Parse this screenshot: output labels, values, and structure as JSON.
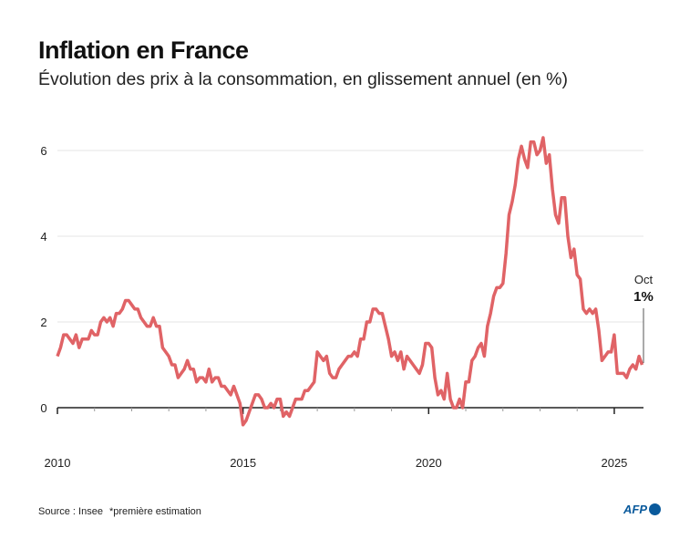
{
  "title": "Inflation en France",
  "subtitle": "Évolution des prix à la consommation, en glissement annuel (en %)",
  "source": "Source : Insee",
  "footnote": "*première estimation",
  "logo": "AFP",
  "chart_data": {
    "type": "line",
    "title": "Inflation en France",
    "subtitle": "Évolution des prix à la consommation, en glissement annuel (en %)",
    "xlabel": "",
    "ylabel": "",
    "x_start": "2010-01",
    "x_end": "2025-10",
    "frequency": "monthly",
    "xticks": [
      "2010",
      "2015",
      "2020",
      "2025"
    ],
    "yticks": [
      "0",
      "2",
      "4",
      "6"
    ],
    "ylim": [
      -0.5,
      6.6
    ],
    "grid": true,
    "color": "#e06366",
    "annotation": {
      "month": "Oct",
      "value": "1%"
    },
    "values": [
      1.2,
      1.4,
      1.7,
      1.7,
      1.6,
      1.5,
      1.7,
      1.4,
      1.6,
      1.6,
      1.6,
      1.8,
      1.7,
      1.7,
      2.0,
      2.1,
      2.0,
      2.1,
      1.9,
      2.2,
      2.2,
      2.3,
      2.5,
      2.5,
      2.4,
      2.3,
      2.3,
      2.1,
      2.0,
      1.9,
      1.9,
      2.1,
      1.9,
      1.9,
      1.4,
      1.3,
      1.2,
      1.0,
      1.0,
      0.7,
      0.8,
      0.9,
      1.1,
      0.9,
      0.9,
      0.6,
      0.7,
      0.7,
      0.6,
      0.9,
      0.6,
      0.7,
      0.7,
      0.5,
      0.5,
      0.4,
      0.3,
      0.5,
      0.3,
      0.1,
      -0.4,
      -0.3,
      -0.1,
      0.1,
      0.3,
      0.3,
      0.2,
      0.0,
      0.0,
      0.1,
      0.0,
      0.2,
      0.2,
      -0.2,
      -0.1,
      -0.2,
      0.0,
      0.2,
      0.2,
      0.2,
      0.4,
      0.4,
      0.5,
      0.6,
      1.3,
      1.2,
      1.1,
      1.2,
      0.8,
      0.7,
      0.7,
      0.9,
      1.0,
      1.1,
      1.2,
      1.2,
      1.3,
      1.2,
      1.6,
      1.6,
      2.0,
      2.0,
      2.3,
      2.3,
      2.2,
      2.2,
      1.9,
      1.6,
      1.2,
      1.3,
      1.1,
      1.3,
      0.9,
      1.2,
      1.1,
      1.0,
      0.9,
      0.8,
      1.0,
      1.5,
      1.5,
      1.4,
      0.7,
      0.3,
      0.4,
      0.2,
      0.8,
      0.2,
      0.0,
      0.0,
      0.2,
      0.0,
      0.6,
      0.6,
      1.1,
      1.2,
      1.4,
      1.5,
      1.2,
      1.9,
      2.2,
      2.6,
      2.8,
      2.8,
      2.9,
      3.6,
      4.5,
      4.8,
      5.2,
      5.8,
      6.1,
      5.8,
      5.6,
      6.2,
      6.2,
      5.9,
      6.0,
      6.3,
      5.7,
      5.9,
      5.1,
      4.5,
      4.3,
      4.9,
      4.9,
      4.0,
      3.5,
      3.7,
      3.1,
      3.0,
      2.3,
      2.2,
      2.3,
      2.2,
      2.3,
      1.8,
      1.1,
      1.2,
      1.3,
      1.3,
      1.7,
      0.8,
      0.8,
      0.8,
      0.7,
      0.9,
      1.0,
      0.9,
      1.2,
      1.0
    ]
  }
}
